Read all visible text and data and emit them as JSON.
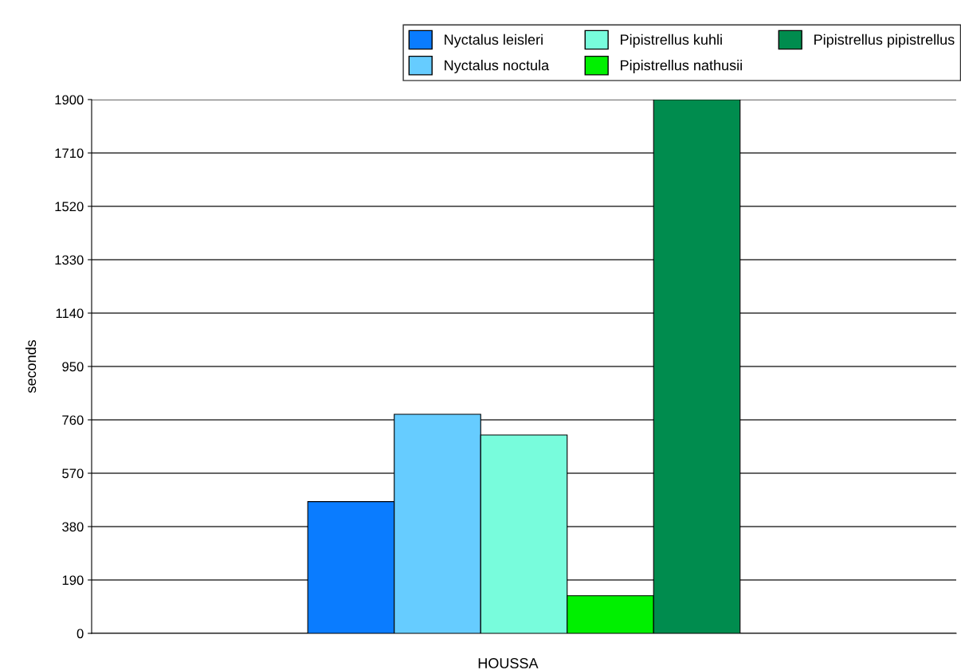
{
  "chart_data": {
    "type": "bar",
    "ylabel": "seconds",
    "categories": [
      "HOUSSA____"
    ],
    "series": [
      {
        "name": "Nyctalus leisleri",
        "color": "#0a7cff",
        "values": [
          469
        ]
      },
      {
        "name": "Nyctalus noctula",
        "color": "#66ccff",
        "values": [
          780
        ]
      },
      {
        "name": "Pipistrellus kuhli",
        "color": "#78fcdc",
        "values": [
          706
        ]
      },
      {
        "name": "Pipistrellus nathusii",
        "color": "#00f000",
        "values": [
          134
        ]
      },
      {
        "name": "Pipistrellus pipistrellus",
        "color": "#008c4e",
        "values": [
          1900
        ]
      }
    ],
    "ylim": [
      0,
      1900
    ],
    "yticks": [
      0,
      190,
      380,
      570,
      760,
      950,
      1140,
      1330,
      1520,
      1710,
      1900
    ],
    "grid": "y",
    "legend": "top right"
  }
}
